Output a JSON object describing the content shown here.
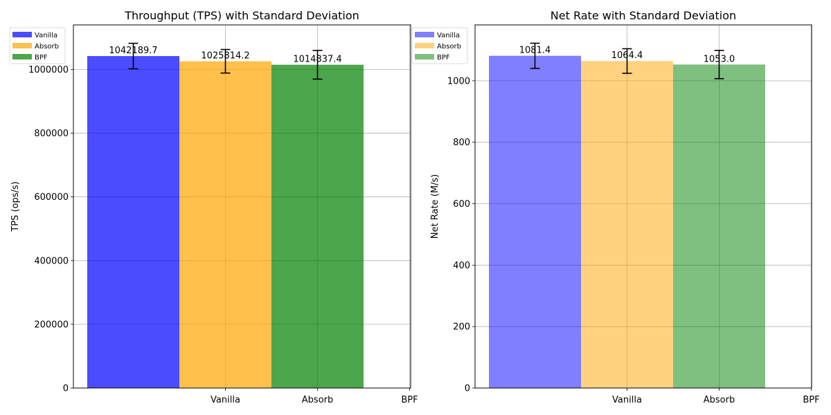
{
  "chart_data": [
    {
      "type": "bar",
      "title": "Throughput (TPS) with Standard Deviation",
      "xlabel": "",
      "ylabel": "TPS (ops/s)",
      "ylim": [
        0,
        1140000
      ],
      "yticks": [
        "0",
        "200000",
        "400000",
        "600000",
        "800000",
        "1000000"
      ],
      "xticks": [
        "Vanilla",
        "Absorb",
        "BPF"
      ],
      "grid": true,
      "legend": "top-left",
      "series": [
        {
          "name": "Vanilla",
          "value": 1042189.7,
          "std": 40000,
          "label": "1042189.7",
          "color": "#0000ff",
          "opacity": 0.7
        },
        {
          "name": "Absorb",
          "value": 1025814.2,
          "std": 37000,
          "label": "1025814.2",
          "color": "#ffa500",
          "opacity": 0.7
        },
        {
          "name": "BPF",
          "value": 1014837.4,
          "std": 45000,
          "label": "1014837.4",
          "color": "#008000",
          "opacity": 0.7
        }
      ]
    },
    {
      "type": "bar",
      "title": "Net Rate with Standard Deviation",
      "xlabel": "",
      "ylabel": "Net Rate (M/s)",
      "ylim": [
        0,
        1182
      ],
      "yticks": [
        "0",
        "200",
        "400",
        "600",
        "800",
        "1000"
      ],
      "xticks": [
        "Vanilla",
        "Absorb",
        "BPF"
      ],
      "grid": true,
      "legend": "top-left",
      "series": [
        {
          "name": "Vanilla",
          "value": 1081.4,
          "std": 41,
          "label": "1081.4",
          "color": "#0000ff",
          "opacity": 0.5
        },
        {
          "name": "Absorb",
          "value": 1064.4,
          "std": 40,
          "label": "1064.4",
          "color": "#ffa500",
          "opacity": 0.5
        },
        {
          "name": "BPF",
          "value": 1053.0,
          "std": 46,
          "label": "1053.0",
          "color": "#008000",
          "opacity": 0.5
        }
      ]
    }
  ]
}
